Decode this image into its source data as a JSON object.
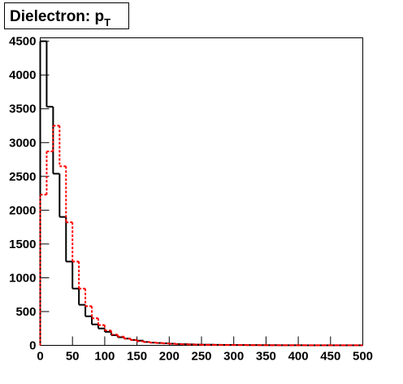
{
  "chart_data": {
    "type": "histogram",
    "title": "Dielectron: p",
    "title_subscript": "T",
    "bins": [
      0,
      10,
      20,
      30,
      40,
      50,
      60,
      70,
      80,
      90,
      100,
      110,
      120,
      130,
      140,
      150,
      160,
      170,
      180,
      190,
      200,
      210,
      220,
      230,
      240,
      250,
      260,
      270,
      280,
      290,
      300,
      310,
      320,
      330,
      340,
      350,
      360,
      370,
      380,
      390,
      400,
      410,
      420,
      430,
      440,
      450,
      460,
      470,
      480,
      490,
      500
    ],
    "series": [
      {
        "color": "#000000",
        "dash": "solid",
        "values": [
          4500,
          3530,
          2540,
          1900,
          1240,
          840,
          600,
          430,
          310,
          250,
          200,
          150,
          120,
          100,
          80,
          70,
          50,
          40,
          35,
          30,
          25,
          20,
          18,
          15,
          12,
          10,
          10,
          8,
          7,
          6,
          5,
          5,
          4,
          4,
          3,
          3,
          3,
          2,
          2,
          2,
          2,
          1,
          1,
          1,
          1,
          1,
          1,
          1,
          1,
          1
        ]
      },
      {
        "color": "#ff0000",
        "dash": "dotted",
        "values": [
          2230,
          2870,
          3250,
          2650,
          1820,
          1240,
          840,
          580,
          400,
          300,
          220,
          160,
          130,
          100,
          80,
          60,
          50,
          40,
          35,
          28,
          22,
          18,
          15,
          12,
          10,
          8,
          7,
          6,
          5,
          5,
          4,
          4,
          3,
          3,
          3,
          2,
          2,
          2,
          2,
          1,
          1,
          1,
          1,
          1,
          1,
          1,
          1,
          1,
          1,
          1
        ]
      }
    ],
    "xlim": [
      0,
      500
    ],
    "xticks": [
      0,
      50,
      100,
      150,
      200,
      250,
      300,
      350,
      400,
      450,
      500
    ],
    "ylim": [
      0,
      4550
    ],
    "yticks": [
      0,
      500,
      1000,
      1500,
      2000,
      2500,
      3000,
      3500,
      4000,
      4500
    ],
    "grid": false
  }
}
